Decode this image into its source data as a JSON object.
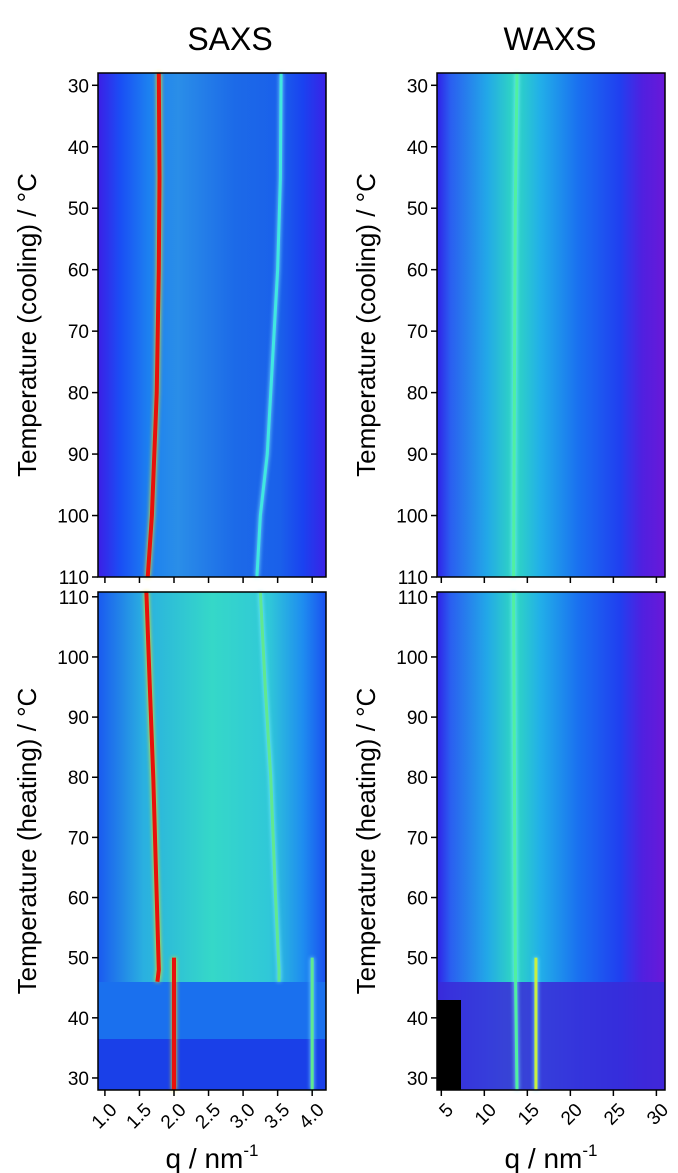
{
  "chart_data": [
    {
      "type": "heatmap",
      "title": "SAXS",
      "y_label": "Temperature (cooling) / °C",
      "xlim": [
        0.9,
        4.2
      ],
      "xticks": [
        1.0,
        1.5,
        2.0,
        2.5,
        3.0,
        3.5,
        4.0
      ],
      "ylim": [
        110,
        28
      ],
      "yticks": [
        30,
        40,
        50,
        60,
        70,
        80,
        90,
        100,
        110
      ],
      "ridges": [
        {
          "color": "#e8100a",
          "x": [
            1.78,
            1.79,
            1.78,
            1.75,
            1.68,
            1.62
          ],
          "y": [
            28,
            45,
            60,
            80,
            100,
            110
          ]
        },
        {
          "color": "#40e8e0",
          "x": [
            3.55,
            3.54,
            3.5,
            3.35,
            3.25,
            3.2
          ],
          "y": [
            28,
            45,
            60,
            90,
            100,
            110
          ]
        }
      ]
    },
    {
      "type": "heatmap",
      "title": "WAXS",
      "y_label": "Temperature (cooling) / °C",
      "xlim": [
        4.5,
        31
      ],
      "xticks": [
        5,
        10,
        15,
        20,
        25,
        30
      ],
      "ylim": [
        110,
        28
      ],
      "yticks": [
        30,
        40,
        50,
        60,
        70,
        80,
        90,
        100,
        110
      ],
      "ridges": [
        {
          "color": "#50f0a0",
          "x": [
            13.8,
            13.6,
            13.5,
            13.4
          ],
          "y": [
            28,
            50,
            80,
            110
          ]
        }
      ]
    },
    {
      "type": "heatmap",
      "y_label": "Temperature (heating) / °C",
      "x_label": "q / nm",
      "x_label_sup": "-1",
      "xlim": [
        0.9,
        4.2
      ],
      "xticks": [
        {
          "value": 1.0,
          "label": "1.0"
        },
        {
          "value": 1.5,
          "label": "1.5"
        },
        {
          "value": 2.0,
          "label": "2.0"
        },
        {
          "value": 2.5,
          "label": "2.5"
        },
        {
          "value": 3.0,
          "label": "3.0"
        },
        {
          "value": 3.5,
          "label": "3.5"
        },
        {
          "value": 4.0,
          "label": "4.0"
        }
      ],
      "ylim": [
        28,
        110.8
      ],
      "yticks": [
        30,
        40,
        50,
        60,
        70,
        80,
        90,
        100,
        110
      ],
      "ridges": [
        {
          "color": "#e8100a",
          "x": [
            1.6,
            1.65,
            1.7,
            1.75,
            1.78,
            1.76
          ],
          "y": [
            110.8,
            95,
            80,
            60,
            48,
            46
          ]
        },
        {
          "color": "#60e890",
          "x": [
            3.25,
            3.32,
            3.4,
            3.47,
            3.52,
            3.52
          ],
          "y": [
            110.8,
            95,
            80,
            60,
            48,
            46
          ]
        },
        {
          "color": "#e8100a",
          "x": [
            2.0,
            2.0,
            2.0
          ],
          "y": [
            28,
            40,
            50
          ]
        },
        {
          "color": "#60e890",
          "x": [
            4.0,
            4.0,
            4.0
          ],
          "y": [
            28,
            40,
            50
          ]
        }
      ]
    },
    {
      "type": "heatmap",
      "y_label": "Temperature (heating) / °C",
      "x_label": "q / nm",
      "x_label_sup": "-1",
      "xlim": [
        4.5,
        31
      ],
      "xticks": [
        5,
        10,
        15,
        20,
        25,
        30
      ],
      "ylim": [
        28,
        110.8
      ],
      "yticks": [
        30,
        40,
        50,
        60,
        70,
        80,
        90,
        100,
        110
      ],
      "ridges": [
        {
          "color": "#50f0a0",
          "x": [
            13.4,
            13.5,
            13.6,
            13.8
          ],
          "y": [
            110.8,
            80,
            50,
            28
          ]
        },
        {
          "color": "#c8f040",
          "x": [
            16.0,
            16.0,
            16.0
          ],
          "y": [
            28,
            40,
            50
          ]
        }
      ]
    }
  ]
}
